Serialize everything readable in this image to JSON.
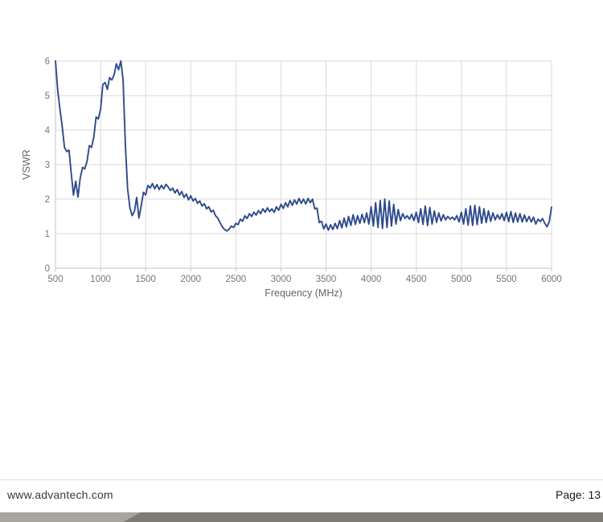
{
  "footer": {
    "website": "www.advantech.com",
    "page_label": "Page: 13",
    "bar_light_color": "#a8a5a1",
    "bar_dark_color": "#7e7b77"
  },
  "chart_data": {
    "type": "line",
    "title": "",
    "xlabel": "Frequency (MHz)",
    "ylabel": "VSWR",
    "xlim": [
      500,
      6000
    ],
    "ylim": [
      0,
      6
    ],
    "x_ticks": [
      500,
      1000,
      1500,
      2000,
      2500,
      3000,
      3500,
      4000,
      4500,
      5000,
      5500,
      6000
    ],
    "y_ticks": [
      0,
      1,
      2,
      3,
      4,
      5,
      6
    ],
    "grid": true,
    "legend": "none",
    "line_color": "#2d4b8b",
    "grid_color": "#d9d9d9",
    "axis_color": "#c6c6c6",
    "tick_label_color": "#757575",
    "axis_title_color": "#666666",
    "series": [
      {
        "name": "VSWR",
        "x_start": 500,
        "x_step": 25,
        "y": [
          6.0,
          5.15,
          4.6,
          4.1,
          3.5,
          3.38,
          3.42,
          2.75,
          2.12,
          2.52,
          2.06,
          2.62,
          2.92,
          2.88,
          3.1,
          3.55,
          3.5,
          3.8,
          4.38,
          4.32,
          4.6,
          5.32,
          5.38,
          5.18,
          5.52,
          5.45,
          5.6,
          5.92,
          5.75,
          6.0,
          5.45,
          3.6,
          2.3,
          1.75,
          1.52,
          1.65,
          2.05,
          1.45,
          1.8,
          2.2,
          2.12,
          2.4,
          2.32,
          2.45,
          2.3,
          2.42,
          2.28,
          2.4,
          2.3,
          2.43,
          2.35,
          2.25,
          2.32,
          2.18,
          2.28,
          2.12,
          2.22,
          2.05,
          2.15,
          1.98,
          2.1,
          1.95,
          2.02,
          1.88,
          1.95,
          1.8,
          1.87,
          1.72,
          1.78,
          1.63,
          1.68,
          1.52,
          1.45,
          1.32,
          1.2,
          1.12,
          1.08,
          1.13,
          1.22,
          1.18,
          1.3,
          1.26,
          1.42,
          1.36,
          1.52,
          1.44,
          1.58,
          1.5,
          1.62,
          1.54,
          1.67,
          1.58,
          1.72,
          1.62,
          1.75,
          1.64,
          1.72,
          1.62,
          1.78,
          1.68,
          1.85,
          1.73,
          1.9,
          1.78,
          1.96,
          1.82,
          1.98,
          1.86,
          2.02,
          1.88,
          2.0,
          1.86,
          2.02,
          1.9,
          2.0,
          1.72,
          1.74,
          1.32,
          1.36,
          1.14,
          1.28,
          1.1,
          1.26,
          1.12,
          1.3,
          1.15,
          1.38,
          1.17,
          1.45,
          1.2,
          1.5,
          1.24,
          1.55,
          1.27,
          1.52,
          1.3,
          1.56,
          1.32,
          1.6,
          1.28,
          1.78,
          1.22,
          1.9,
          1.18,
          1.96,
          1.15,
          2.0,
          1.18,
          1.95,
          1.22,
          1.85,
          1.28,
          1.7,
          1.38,
          1.58,
          1.44,
          1.52,
          1.42,
          1.56,
          1.38,
          1.62,
          1.32,
          1.72,
          1.27,
          1.8,
          1.24,
          1.76,
          1.28,
          1.66,
          1.33,
          1.6,
          1.37,
          1.55,
          1.4,
          1.5,
          1.42,
          1.48,
          1.4,
          1.52,
          1.34,
          1.62,
          1.28,
          1.72,
          1.25,
          1.8,
          1.24,
          1.82,
          1.26,
          1.78,
          1.3,
          1.72,
          1.32,
          1.66,
          1.36,
          1.6,
          1.4,
          1.55,
          1.42,
          1.58,
          1.38,
          1.62,
          1.35,
          1.64,
          1.33,
          1.6,
          1.34,
          1.58,
          1.34,
          1.54,
          1.35,
          1.5,
          1.34,
          1.48,
          1.28,
          1.42,
          1.35,
          1.44,
          1.3,
          1.2,
          1.35,
          1.77
        ]
      }
    ]
  }
}
